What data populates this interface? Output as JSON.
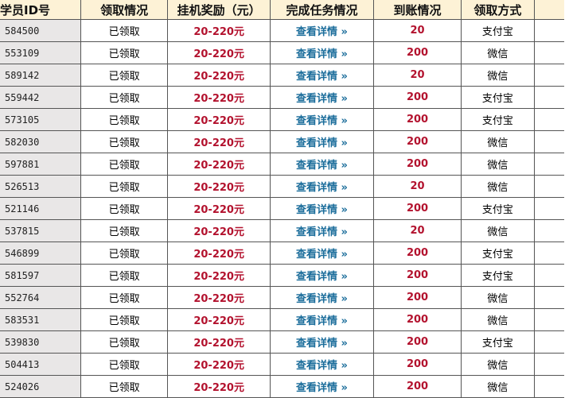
{
  "headers": [
    "学员ID号",
    "领取情况",
    "挂机奖励（元）",
    "完成任务情况",
    "到账情况",
    "领取方式"
  ],
  "rows": [
    {
      "id": "584500",
      "status": "已领取",
      "reward": "20-220元",
      "task": "查看详情 »",
      "received": "20",
      "method": "支付宝"
    },
    {
      "id": "553109",
      "status": "已领取",
      "reward": "20-220元",
      "task": "查看详情 »",
      "received": "200",
      "method": "微信"
    },
    {
      "id": "589142",
      "status": "已领取",
      "reward": "20-220元",
      "task": "查看详情 »",
      "received": "20",
      "method": "微信"
    },
    {
      "id": "559442",
      "status": "已领取",
      "reward": "20-220元",
      "task": "查看详情 »",
      "received": "200",
      "method": "支付宝"
    },
    {
      "id": "573105",
      "status": "已领取",
      "reward": "20-220元",
      "task": "查看详情 »",
      "received": "200",
      "method": "支付宝"
    },
    {
      "id": "582030",
      "status": "已领取",
      "reward": "20-220元",
      "task": "查看详情 »",
      "received": "200",
      "method": "微信"
    },
    {
      "id": "597881",
      "status": "已领取",
      "reward": "20-220元",
      "task": "查看详情 »",
      "received": "200",
      "method": "微信"
    },
    {
      "id": "526513",
      "status": "已领取",
      "reward": "20-220元",
      "task": "查看详情 »",
      "received": "20",
      "method": "微信"
    },
    {
      "id": "521146",
      "status": "已领取",
      "reward": "20-220元",
      "task": "查看详情 »",
      "received": "200",
      "method": "支付宝"
    },
    {
      "id": "537815",
      "status": "已领取",
      "reward": "20-220元",
      "task": "查看详情 »",
      "received": "20",
      "method": "微信"
    },
    {
      "id": "546899",
      "status": "已领取",
      "reward": "20-220元",
      "task": "查看详情 »",
      "received": "200",
      "method": "支付宝"
    },
    {
      "id": "581597",
      "status": "已领取",
      "reward": "20-220元",
      "task": "查看详情 »",
      "received": "200",
      "method": "支付宝"
    },
    {
      "id": "552764",
      "status": "已领取",
      "reward": "20-220元",
      "task": "查看详情 »",
      "received": "200",
      "method": "微信"
    },
    {
      "id": "583531",
      "status": "已领取",
      "reward": "20-220元",
      "task": "查看详情 »",
      "received": "200",
      "method": "微信"
    },
    {
      "id": "539830",
      "status": "已领取",
      "reward": "20-220元",
      "task": "查看详情 »",
      "received": "200",
      "method": "支付宝"
    },
    {
      "id": "504413",
      "status": "已领取",
      "reward": "20-220元",
      "task": "查看详情 »",
      "received": "200",
      "method": "微信"
    },
    {
      "id": "524026",
      "status": "已领取",
      "reward": "20-220元",
      "task": "查看详情 »",
      "received": "200",
      "method": "微信"
    }
  ],
  "colors": {
    "header_bg": "#fdf2d6",
    "id_bg": "#e9e7e7",
    "amount": "#b3122e",
    "link": "#1b6d9b"
  }
}
